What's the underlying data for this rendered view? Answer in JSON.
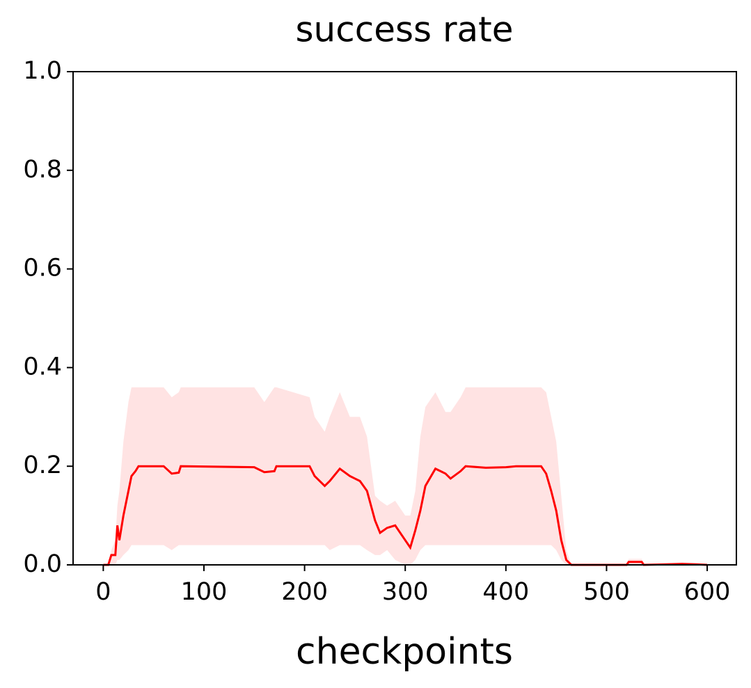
{
  "chart_data": {
    "type": "line",
    "title": "success rate",
    "xlabel": "checkpoints",
    "x": [
      0,
      5,
      8,
      12,
      14,
      16,
      20,
      25,
      28,
      32,
      35,
      60,
      68,
      75,
      77,
      150,
      160,
      170,
      172,
      205,
      210,
      220,
      225,
      235,
      245,
      255,
      262,
      270,
      275,
      282,
      290,
      300,
      305,
      310,
      315,
      320,
      330,
      340,
      345,
      355,
      360,
      380,
      400,
      410,
      435,
      440,
      445,
      450,
      455,
      460,
      465,
      520,
      522,
      535,
      537,
      575,
      590,
      600
    ],
    "series": [
      {
        "color": "#ff0000",
        "band_color": "#ffe3e3",
        "values": [
          0,
          0,
          0.02,
          0.02,
          0.08,
          0.05,
          0.1,
          0.15,
          0.18,
          0.19,
          0.2,
          0.2,
          0.185,
          0.187,
          0.2,
          0.198,
          0.188,
          0.19,
          0.2,
          0.2,
          0.18,
          0.16,
          0.17,
          0.195,
          0.18,
          0.17,
          0.15,
          0.09,
          0.065,
          0.075,
          0.08,
          0.05,
          0.035,
          0.07,
          0.11,
          0.16,
          0.195,
          0.185,
          0.175,
          0.19,
          0.2,
          0.197,
          0.198,
          0.2,
          0.2,
          0.185,
          0.15,
          0.11,
          0.05,
          0.01,
          0,
          0,
          0.006,
          0.006,
          0,
          0.002,
          0.001,
          0
        ],
        "upper": [
          0,
          0,
          0.03,
          0.05,
          0.12,
          0.15,
          0.25,
          0.33,
          0.36,
          0.36,
          0.36,
          0.36,
          0.34,
          0.35,
          0.36,
          0.36,
          0.33,
          0.36,
          0.36,
          0.34,
          0.3,
          0.27,
          0.3,
          0.35,
          0.3,
          0.3,
          0.26,
          0.14,
          0.13,
          0.12,
          0.13,
          0.1,
          0.1,
          0.15,
          0.26,
          0.32,
          0.35,
          0.31,
          0.31,
          0.34,
          0.36,
          0.36,
          0.36,
          0.36,
          0.36,
          0.35,
          0.3,
          0.25,
          0.14,
          0.03,
          0,
          0,
          0.012,
          0.012,
          0,
          0.005,
          0.003,
          0
        ],
        "lower": [
          0,
          0,
          0,
          0,
          0.01,
          0.01,
          0.02,
          0.03,
          0.04,
          0.04,
          0.04,
          0.04,
          0.03,
          0.04,
          0.04,
          0.04,
          0.04,
          0.04,
          0.04,
          0.04,
          0.04,
          0.04,
          0.03,
          0.04,
          0.04,
          0.04,
          0.03,
          0.02,
          0.02,
          0.03,
          0.01,
          0,
          0,
          0.01,
          0.03,
          0.04,
          0.04,
          0.04,
          0.04,
          0.04,
          0.04,
          0.04,
          0.04,
          0.04,
          0.04,
          0.04,
          0.04,
          0.03,
          0.01,
          0,
          0,
          0,
          0,
          0,
          0,
          0,
          0,
          0
        ]
      }
    ],
    "xlim": [
      -30,
      629
    ],
    "xticks": [
      0,
      100,
      200,
      300,
      400,
      500,
      600
    ],
    "ylim": [
      0,
      1
    ],
    "yticks": [
      {
        "value": 0,
        "label": "0.0"
      },
      {
        "value": 0.2,
        "label": "0.2"
      },
      {
        "value": 0.4,
        "label": "0.4"
      },
      {
        "value": 0.6,
        "label": "0.6"
      },
      {
        "value": 0.8,
        "label": "0.8"
      },
      {
        "value": 1,
        "label": "1.0"
      }
    ]
  }
}
